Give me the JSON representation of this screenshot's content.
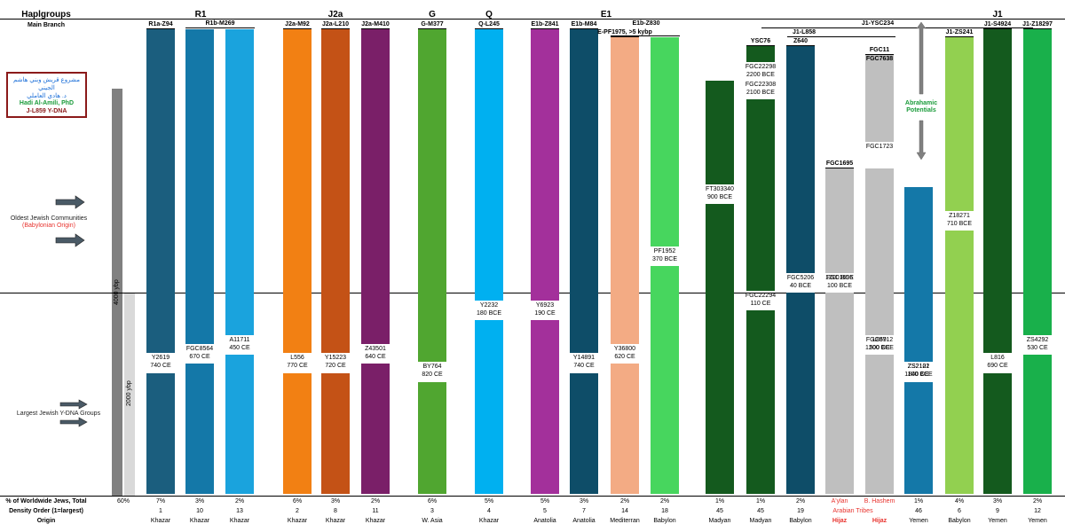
{
  "header": {
    "haplogroups_label": "Haplgroups",
    "main_branch_label": "Main Branch",
    "groups": [
      {
        "name": "R1"
      },
      {
        "name": "J2a"
      },
      {
        "name": "G"
      },
      {
        "name": "Q"
      },
      {
        "name": "E1"
      },
      {
        "name": "J1"
      }
    ],
    "j1_ysc234": "J1-YSC234",
    "j1_l858": "J1-L858",
    "e1b_z830": "E1b-Z830",
    "r1b_m269": "R1b-M269"
  },
  "left_panel": {
    "logo_ar1": "مشروع قريش وبني هاشم الجيني",
    "logo_ar2": "د. هادي العاملي",
    "logo_en1": "Hadi Al-Amili, PhD",
    "logo_en2": "J-L859 Y-DNA",
    "oldest_line1": "Oldest Jewish Communities",
    "oldest_line2": "(Babylonian Origin)",
    "largest": "Largest Jewish Y-DNA Groups",
    "ybp_4000": "4000 ybp",
    "ybp_2000": "2000 ybp",
    "abrahamic": "Abrahamic Potentials"
  },
  "footer": {
    "row1_label": "% of Worldwide Jews, Total",
    "row2_label": "Density Order (1=largest)",
    "row3_label": "Origin",
    "total_percent": "60%",
    "arabian_tribes": "Arabian Tribes"
  },
  "colors": {
    "dark_teal": "#1b5e7e",
    "teal": "#1478a8",
    "light_blue": "#1aa3dd",
    "orange": "#f28013",
    "rust": "#c45216",
    "purple": "#7a1f68",
    "green": "#50a630",
    "cyan": "#00b0f0",
    "magenta": "#a3309b",
    "navy_teal": "#0e4d68",
    "salmon": "#f3ab84",
    "bright_green": "#47d65e",
    "forest": "#145a1e",
    "grey": "#bfbfbf",
    "lime": "#92d050",
    "vivid_green": "#19b04b"
  },
  "chart_data": {
    "type": "bar",
    "title": "",
    "xlabel": "",
    "ylabel": "",
    "ylim": [
      "2000 BCE",
      "present"
    ],
    "reference_line": "year 0",
    "columns": [
      {
        "label": "R1a-Z94",
        "color": "#1b5e7e",
        "percent": "7%",
        "order": "1",
        "origin": "Khazar",
        "splits": [
          {
            "snp": "Y2619",
            "date": "740 CE"
          }
        ]
      },
      {
        "label": "",
        "color": "#1478a8",
        "percent": "3%",
        "order": "10",
        "origin": "Khazar",
        "splits": [
          {
            "snp": "FGC8564",
            "date": "670 CE"
          }
        ]
      },
      {
        "label": "",
        "color": "#1aa3dd",
        "percent": "2%",
        "order": "13",
        "origin": "Khazar",
        "splits": [
          {
            "snp": "A11711",
            "date": "450 CE"
          }
        ]
      },
      {
        "label": "J2a-M92",
        "color": "#f28013",
        "percent": "6%",
        "order": "2",
        "origin": "Khazar",
        "splits": [
          {
            "snp": "L556",
            "date": "770 CE"
          }
        ]
      },
      {
        "label": "J2a-L210",
        "color": "#c45216",
        "percent": "3%",
        "order": "8",
        "origin": "Khazar",
        "splits": [
          {
            "snp": "Y15223",
            "date": "720 CE"
          }
        ]
      },
      {
        "label": "J2a-M410",
        "color": "#7a1f68",
        "percent": "2%",
        "order": "11",
        "origin": "Khazar",
        "splits": [
          {
            "snp": "Z43501",
            "date": "640 CE"
          }
        ]
      },
      {
        "label": "G-M377",
        "color": "#50a630",
        "percent": "6%",
        "order": "3",
        "origin": "W. Asia",
        "splits": [
          {
            "snp": "BY764",
            "date": "820 CE"
          }
        ]
      },
      {
        "label": "Q-L245",
        "color": "#00b0f0",
        "percent": "5%",
        "order": "4",
        "origin": "Khazar",
        "splits": [
          {
            "snp": "Y2232",
            "date": "180 BCE"
          }
        ]
      },
      {
        "label": "E1b-Z841",
        "color": "#a3309b",
        "percent": "5%",
        "order": "5",
        "origin": "Anatolia",
        "splits": [
          {
            "snp": "Y6923",
            "date": "190 CE"
          }
        ]
      },
      {
        "label": "E1b-M84",
        "color": "#0e4d68",
        "percent": "3%",
        "order": "7",
        "origin": "Anatolia",
        "splits": [
          {
            "snp": "Y14891",
            "date": "740 CE"
          }
        ]
      },
      {
        "label": "E-PF1975, >5 kybp",
        "color": "#f3ab84",
        "percent": "2%",
        "order": "14",
        "origin": "Mediterran",
        "splits": [
          {
            "snp": "Y36800",
            "date": "620 CE"
          }
        ]
      },
      {
        "label": "",
        "color": "#47d65e",
        "percent": "2%",
        "order": "18",
        "origin": "Babylon",
        "splits": [
          {
            "snp": "PF1952",
            "date": "370 BCE"
          }
        ]
      },
      {
        "label": "",
        "color": "#145a1e",
        "percent": "1%",
        "order": "45",
        "origin": "Madyan",
        "splits": [
          {
            "snp": "FT303340",
            "date": "900 BCE"
          }
        ]
      },
      {
        "label": "YSC76",
        "color": "#145a1e",
        "percent": "1%",
        "order": "45",
        "origin": "Madyan",
        "splits": [
          {
            "snp": "FGC22298",
            "date": "2200 BCE"
          },
          {
            "snp": "FGC22308",
            "date": "2100 BCE"
          },
          {
            "snp": "FGC22294",
            "date": "110 CE"
          }
        ]
      },
      {
        "label": "Z640",
        "color": "#0e4d68",
        "percent": "2%",
        "order": "19",
        "origin": "Babylon",
        "splits": [
          {
            "snp": "FGC5206",
            "date": "40 BCE"
          }
        ]
      },
      {
        "label": "FGC1695",
        "color": "#bfbfbf",
        "percent": "",
        "order": "",
        "origin": "A'ylan",
        "origin2": "Hijaz",
        "splits": [
          {
            "snp": "",
            "date": "1200 BCE"
          },
          {
            "snp": "FGC1696",
            "date": "100 BCE"
          }
        ]
      },
      {
        "label": "FGC11",
        "label2": "FGC7638",
        "color": "#bfbfbf",
        "percent": "",
        "order": "",
        "origin": "B. Hashem",
        "origin2": "Hijaz",
        "splits": [
          {
            "snp": "FGC1723",
            "date": ""
          },
          {
            "snp": "FGC8712",
            "date": "1200 BCE"
          },
          {
            "snp": "L859",
            "date": "500 CE"
          }
        ]
      },
      {
        "label": "",
        "color": "#1478a8",
        "percent": "1%",
        "order": "46",
        "origin": "Yemen",
        "splits": [
          {
            "snp": "ZS2121",
            "date": "1100 BCE"
          },
          {
            "snp": "ZS2102",
            "date": "840 CE"
          }
        ]
      },
      {
        "label": "J1-ZS241",
        "color": "#92d050",
        "percent": "4%",
        "order": "6",
        "origin": "Babylon",
        "splits": [
          {
            "snp": "Z18271",
            "date": "710 BCE"
          }
        ]
      },
      {
        "label": "J1-S4924",
        "color": "#145a1e",
        "percent": "3%",
        "order": "9",
        "origin": "Yemen",
        "splits": [
          {
            "snp": "L816",
            "date": "690 CE"
          }
        ]
      },
      {
        "label": "J1-Z18297",
        "color": "#19b04b",
        "percent": "2%",
        "order": "12",
        "origin": "Yemen",
        "splits": [
          {
            "snp": "ZS4292",
            "date": "530 CE"
          }
        ]
      }
    ]
  }
}
